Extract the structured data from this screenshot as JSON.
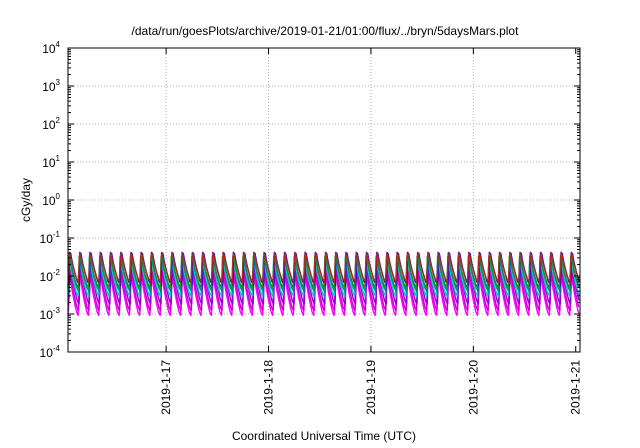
{
  "chart_data": {
    "type": "line",
    "title": "/data/run/goesPlots/archive/2019-01-21/01:00/flux/../bryn/5daysMars.plot",
    "xlabel": "Coordinated Universal Time (UTC)",
    "ylabel": "cGy/day",
    "yscale": "log",
    "ylim": [
      0.0001,
      10000
    ],
    "y_ticks": [
      {
        "base": "10",
        "exp": "-4",
        "value": 0.0001
      },
      {
        "base": "10",
        "exp": "-3",
        "value": 0.001
      },
      {
        "base": "10",
        "exp": "-2",
        "value": 0.01
      },
      {
        "base": "10",
        "exp": "-1",
        "value": 0.1
      },
      {
        "base": "10",
        "exp": "0",
        "value": 1
      },
      {
        "base": "10",
        "exp": "1",
        "value": 10
      },
      {
        "base": "10",
        "exp": "2",
        "value": 100
      },
      {
        "base": "10",
        "exp": "3",
        "value": 1000
      },
      {
        "base": "10",
        "exp": "4",
        "value": 10000
      }
    ],
    "xlim": [
      "2019-01-16T01:00",
      "2019-01-21T01:00"
    ],
    "x_ticks": [
      "2019-1-17",
      "2019-1-18",
      "2019-1-19",
      "2019-1-20",
      "2019-1-21"
    ],
    "grid": true,
    "pattern": {
      "description_free": true,
      "cycles_per_day": 10,
      "series": [
        {
          "color": "#ff00ff",
          "peak": 0.018,
          "trough": 0.0009
        },
        {
          "color": "#cc00cc",
          "peak": 0.022,
          "trough": 0.0012
        },
        {
          "color": "#9400d3",
          "peak": 0.028,
          "trough": 0.0018
        },
        {
          "color": "#00cccc",
          "peak": 0.035,
          "trough": 0.003
        },
        {
          "color": "#008b8b",
          "peak": 0.04,
          "trough": 0.004
        },
        {
          "color": "#0000ff",
          "peak": 0.06,
          "trough": 0.006
        },
        {
          "color": "#228b22",
          "peak": 0.045,
          "trough": 0.005
        },
        {
          "color": "#a52a2a",
          "peak": 0.055,
          "trough": 0.007
        }
      ]
    }
  }
}
